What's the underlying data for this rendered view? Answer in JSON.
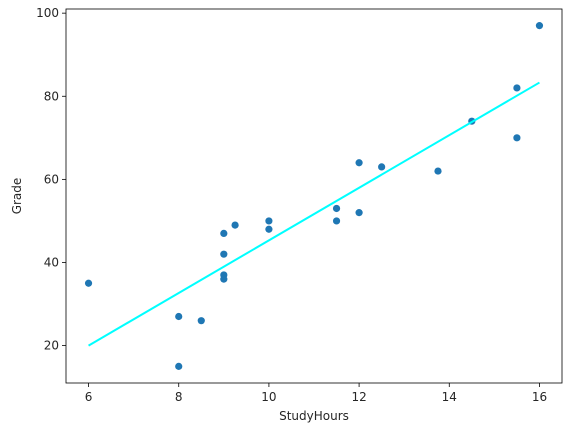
{
  "chart_data": {
    "type": "scatter",
    "title": "",
    "xlabel": "StudyHours",
    "ylabel": "Grade",
    "xlim": [
      5.5,
      16.5
    ],
    "ylim": [
      11,
      101
    ],
    "xticks": [
      6,
      8,
      10,
      12,
      14,
      16
    ],
    "yticks": [
      20,
      40,
      60,
      80,
      100
    ],
    "grid": false,
    "legend": "none",
    "points": {
      "color": "#1f77b4",
      "x": [
        6,
        8,
        8,
        8.5,
        9,
        9,
        9,
        9,
        9.25,
        10,
        10,
        11.5,
        11.5,
        12,
        12,
        12.5,
        13.75,
        14.5,
        15.5,
        15.5,
        16
      ],
      "y": [
        35,
        27,
        15,
        26,
        47,
        42,
        37,
        36,
        49,
        50,
        48,
        53,
        50,
        64,
        52,
        63,
        62,
        74,
        82,
        70,
        97
      ]
    },
    "fit_line": {
      "color": "#00ffff",
      "x": [
        6,
        16
      ],
      "y": [
        20,
        83.3
      ]
    }
  }
}
